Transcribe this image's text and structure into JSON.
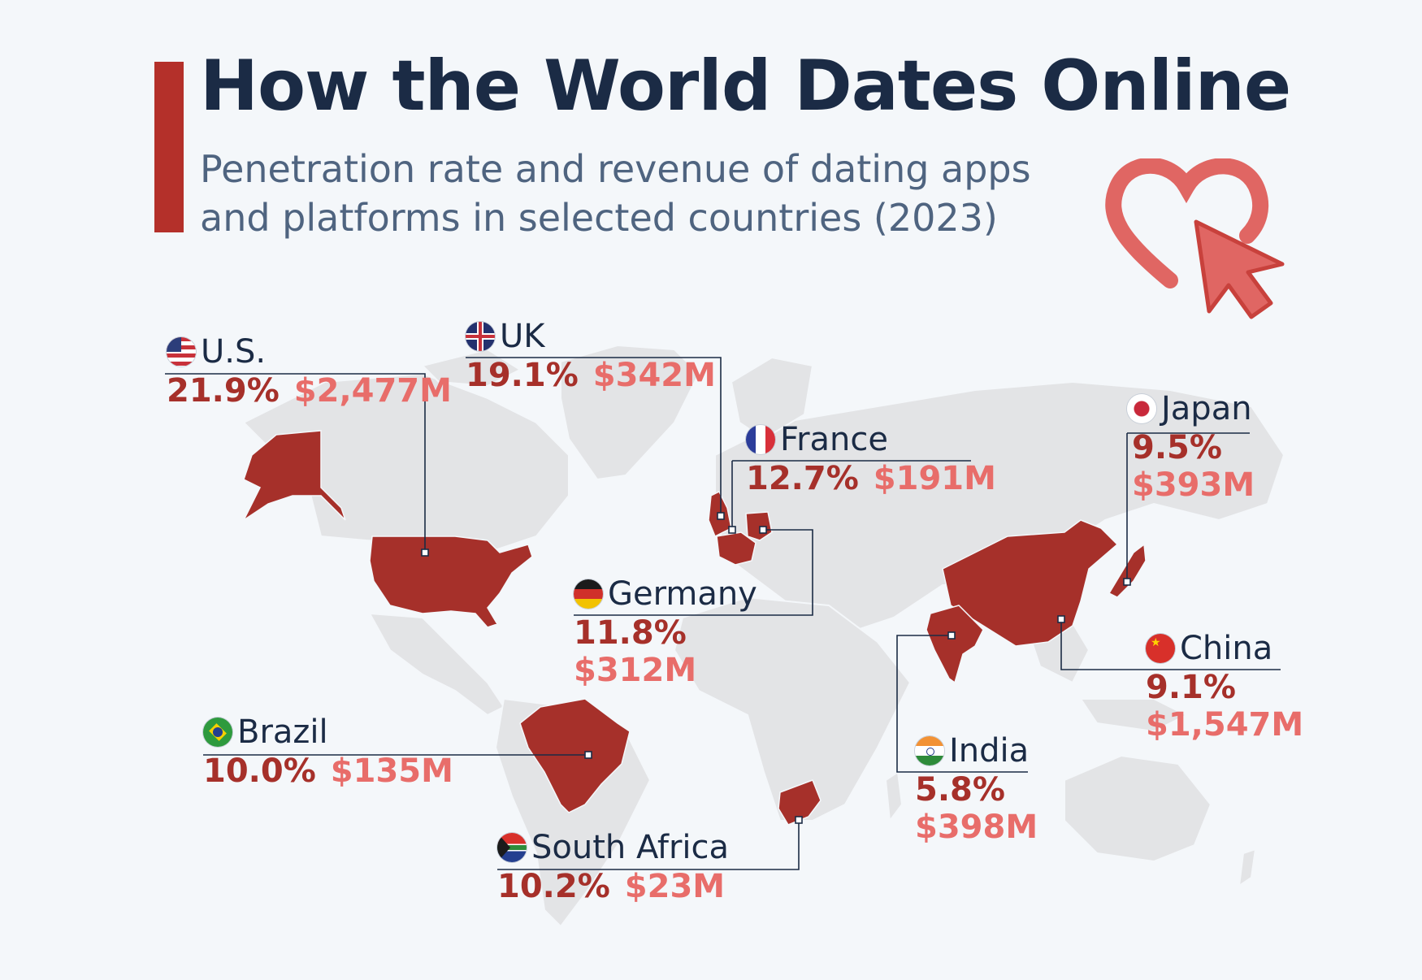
{
  "title": "How the World Dates Online",
  "subtitle": "Penetration rate and revenue of dating apps and platforms in selected countries (2023)",
  "colors": {
    "accent": "#b4302a",
    "rate": "#a6302a",
    "revenue": "#e86d6a",
    "highlighted_country": "#a6302a",
    "land": "#e3e4e6",
    "title": "#1b2b45",
    "subtitle": "#4f6480"
  },
  "countries": [
    {
      "name": "U.S.",
      "flag": "us-flag-icon",
      "penetration_rate": "21.9%",
      "revenue": "$2,477M"
    },
    {
      "name": "UK",
      "flag": "uk-flag-icon",
      "penetration_rate": "19.1%",
      "revenue": "$342M"
    },
    {
      "name": "France",
      "flag": "france-flag-icon",
      "penetration_rate": "12.7%",
      "revenue": "$191M"
    },
    {
      "name": "Germany",
      "flag": "germany-flag-icon",
      "penetration_rate": "11.8%",
      "revenue": "$312M"
    },
    {
      "name": "Japan",
      "flag": "japan-flag-icon",
      "penetration_rate": "9.5%",
      "revenue": "$393M"
    },
    {
      "name": "China",
      "flag": "china-flag-icon",
      "penetration_rate": "9.1%",
      "revenue": "$1,547M"
    },
    {
      "name": "India",
      "flag": "india-flag-icon",
      "penetration_rate": "5.8%",
      "revenue": "$398M"
    },
    {
      "name": "Brazil",
      "flag": "brazil-flag-icon",
      "penetration_rate": "10.0%",
      "revenue": "$135M"
    },
    {
      "name": "South Africa",
      "flag": "south-africa-flag-icon",
      "penetration_rate": "10.2%",
      "revenue": "$23M"
    }
  ]
}
